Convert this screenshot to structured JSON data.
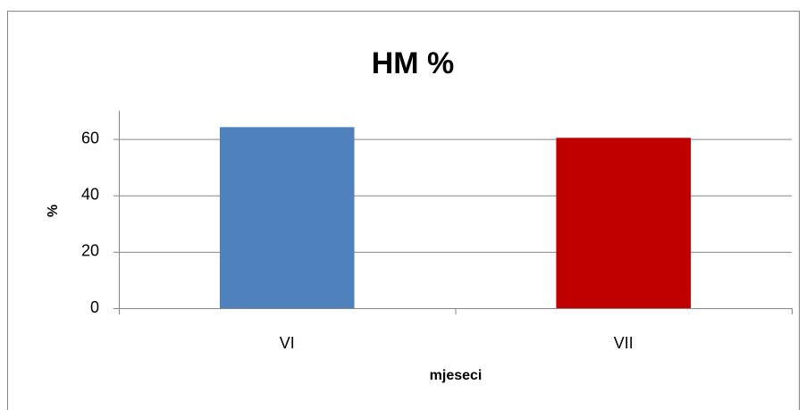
{
  "chart_data": {
    "type": "bar",
    "title": "HM %",
    "x_label": "mjeseci",
    "y_label": "%",
    "categories": [
      "VI",
      "VII"
    ],
    "values": [
      64.2,
      60.4
    ],
    "colors": [
      "#4f81bd",
      "#c00000"
    ],
    "ylim": [
      0,
      70
    ],
    "yticks": [
      0,
      20,
      40,
      60
    ],
    "grid": true
  }
}
